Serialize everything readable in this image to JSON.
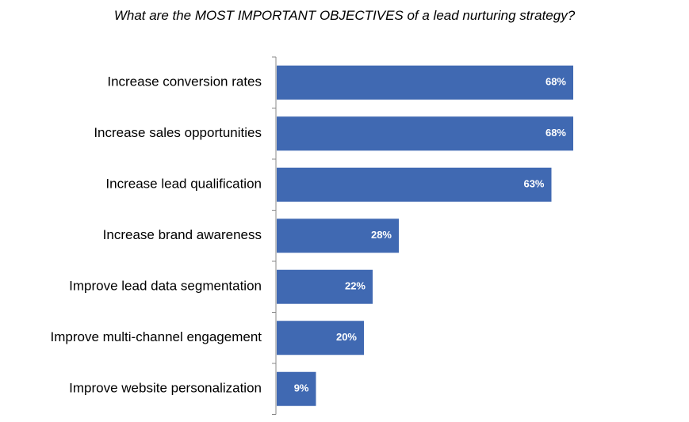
{
  "chart_data": {
    "type": "bar",
    "orientation": "horizontal",
    "title": "What are the MOST IMPORTANT OBJECTIVES of a lead nurturing strategy?",
    "categories": [
      "Increase conversion rates",
      "Increase sales opportunities",
      "Increase lead qualification",
      "Increase brand awareness",
      "Improve lead data segmentation",
      "Improve multi-channel engagement",
      "Improve website personalization"
    ],
    "values": [
      68,
      68,
      63,
      28,
      22,
      20,
      9
    ],
    "value_labels": [
      "68%",
      "68%",
      "63%",
      "28%",
      "22%",
      "20%",
      "9%"
    ],
    "unit": "%",
    "xlim": [
      0,
      100
    ],
    "grid": false,
    "legend": "none",
    "bar_color": "#4069b2"
  }
}
